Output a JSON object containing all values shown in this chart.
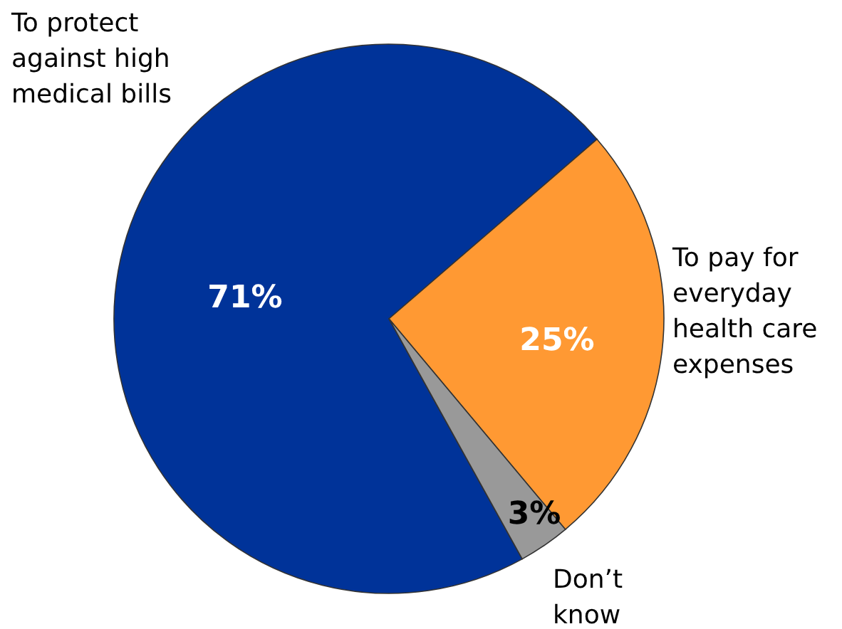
{
  "chart_data": {
    "type": "pie",
    "categories": [
      "To protect against high medical bills",
      "To pay for everyday health care expenses",
      "Don’t know"
    ],
    "values": [
      71,
      25,
      3
    ],
    "colors": [
      "#003399",
      "#ff9933",
      "#999999"
    ],
    "value_labels": [
      "71%",
      "25%",
      "3%"
    ]
  }
}
